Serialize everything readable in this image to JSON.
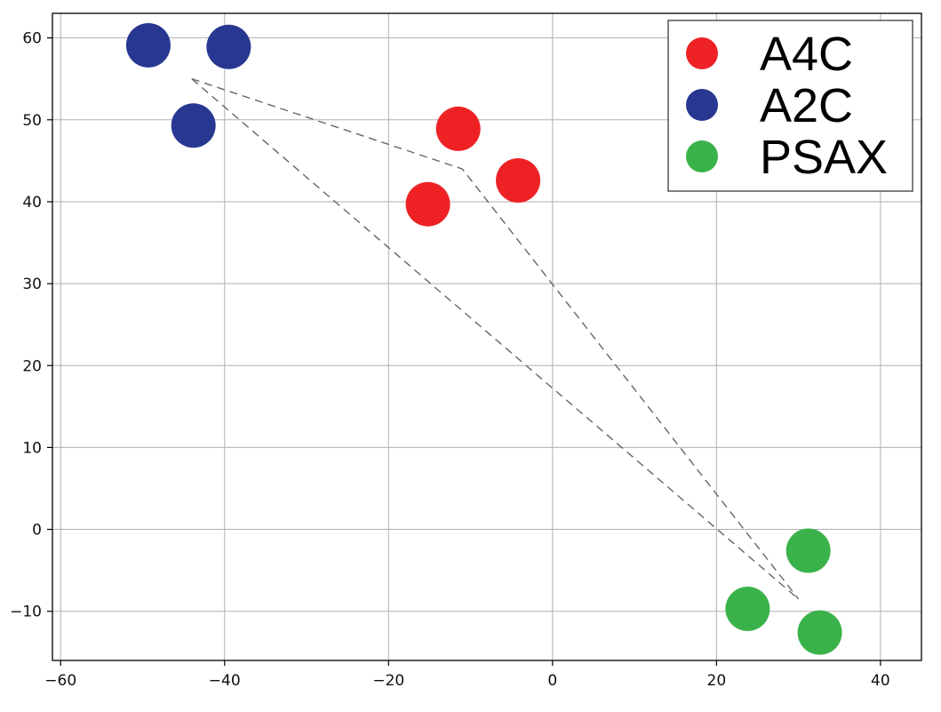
{
  "chart_data": {
    "type": "scatter",
    "xlim": [
      -61,
      45
    ],
    "ylim": [
      -16,
      63
    ],
    "x_ticks": [
      -60,
      -40,
      -20,
      0,
      20,
      40
    ],
    "y_ticks": [
      -10,
      0,
      10,
      20,
      30,
      40,
      50,
      60
    ],
    "grid": true,
    "legend_position": "top-right",
    "series": [
      {
        "name": "A4C",
        "color": "#ee2225",
        "points": [
          {
            "x": -11.5,
            "y": 48.9
          },
          {
            "x": -4.2,
            "y": 42.6
          },
          {
            "x": -15.2,
            "y": 39.7
          }
        ]
      },
      {
        "name": "A2C",
        "color": "#283891",
        "points": [
          {
            "x": -49.3,
            "y": 59.1
          },
          {
            "x": -39.5,
            "y": 58.9
          },
          {
            "x": -43.8,
            "y": 49.3
          }
        ]
      },
      {
        "name": "PSAX",
        "color": "#3ab24a",
        "points": [
          {
            "x": 31.2,
            "y": -2.6
          },
          {
            "x": 23.8,
            "y": -9.7
          },
          {
            "x": 32.6,
            "y": -12.6
          }
        ]
      }
    ],
    "annotations": {
      "dashed_lines": [
        {
          "color": "#666666",
          "points": [
            [
              -44,
              55
            ],
            [
              -11,
              44
            ],
            [
              30,
              -8.5
            ]
          ]
        },
        {
          "color": "#666666",
          "points": [
            [
              -44,
              55
            ],
            [
              30,
              -8.5
            ]
          ]
        }
      ]
    }
  }
}
